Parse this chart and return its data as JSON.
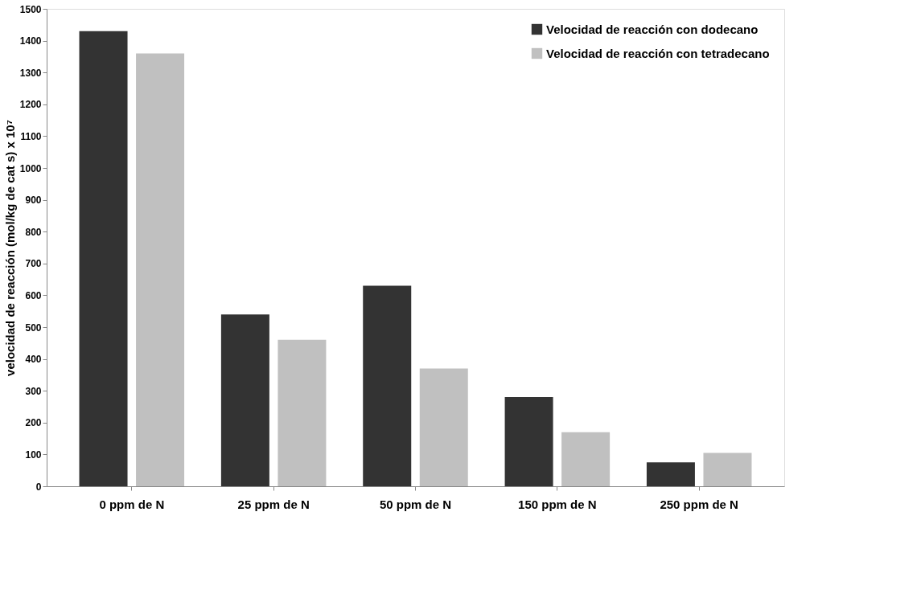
{
  "chart_data": {
    "type": "bar",
    "ylabel": "velocidad de reacción (mol/kg de cat s) x 10⁷",
    "categories": [
      "0 ppm de N",
      "25 ppm de N",
      "50 ppm de N",
      "150 ppm de N",
      "250 ppm de N"
    ],
    "series": [
      {
        "name": "Velocidad de reacción con dodecano",
        "color": "#333333",
        "values": [
          1430,
          540,
          630,
          280,
          75
        ]
      },
      {
        "name": "Velocidad de reacción con tetradecano",
        "color": "#c0c0c0",
        "values": [
          1360,
          460,
          370,
          170,
          105
        ]
      }
    ],
    "ylim": [
      0,
      1500
    ],
    "yticks": [
      0,
      100,
      200,
      300,
      400,
      500,
      600,
      700,
      800,
      900,
      1000,
      1100,
      1200,
      1300,
      1400,
      1500
    ],
    "grid": false,
    "legend": "top right"
  }
}
